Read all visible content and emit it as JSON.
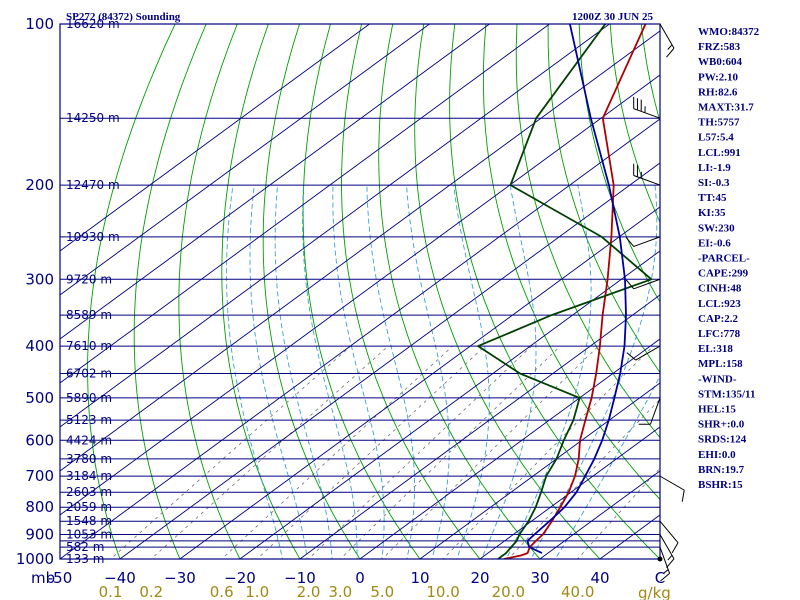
{
  "header": {
    "left": "SP272 (84372) Sounding",
    "right": "1200Z 30 JUN 25"
  },
  "colors": {
    "frame": "#000080",
    "isobar": "#000080",
    "isotherm": "#000080",
    "dry_adiabat": "#00a000",
    "moist_adiabat": "#3aa0d8",
    "mixing_ratio": "#707070",
    "temperature": "#b00000",
    "dewpoint": "#004000",
    "parcel": "#0000a0",
    "wind": "#000000",
    "mixing_label": "#a08a14"
  },
  "indices": [
    "WMO:84372",
    "FRZ:583",
    "WB0:604",
    "PW:2.10",
    "RH:82.6",
    "MAXT:31.7",
    "TH:5757",
    "L57:5.4",
    "LCL:991",
    "LI:-1.9",
    "SI:-0.3",
    "TT:45",
    "KI:35",
    "SW:230",
    "EI:-0.6",
    "-PARCEL-",
    "CAPE:299",
    "CINH:48",
    "LCL:923",
    "CAP:2.2",
    "LFC:778",
    "EL:318",
    "MPL:158",
    "-WIND-",
    "STM:135/11",
    "HEL:15",
    "SHR+:0.0",
    "SRDS:124",
    "EHI:0.0",
    "BRN:19.7",
    "BSHR:15"
  ],
  "chart_data": {
    "type": "line",
    "title": "SP272 (84372) Sounding",
    "subtitle": "1200Z 30 JUN 25",
    "xlabel": "",
    "ylabel": "mb",
    "x_unit_label": "C",
    "mixing_unit_label": "g/kg",
    "ylim": [
      1000,
      100
    ],
    "xlim": [
      -50,
      50
    ],
    "log_pressure": true,
    "skew": true,
    "pressure_ticks": [
      100,
      200,
      300,
      400,
      500,
      600,
      700,
      800,
      900,
      1000
    ],
    "temperature_ticks": [
      -50,
      -40,
      -30,
      -20,
      -10,
      0,
      10,
      20,
      30,
      40
    ],
    "temperature_tick_labels": [
      "-50",
      "−40",
      "−30",
      "−20",
      "−10",
      "0",
      "10",
      "20",
      "30",
      "40"
    ],
    "isobars": [
      100,
      150,
      200,
      250,
      300,
      350,
      400,
      450,
      500,
      550,
      600,
      650,
      700,
      750,
      800,
      850,
      900,
      925,
      950,
      1000
    ],
    "height_labels": [
      {
        "p": 100,
        "label": "16620 m"
      },
      {
        "p": 150,
        "label": "14250 m"
      },
      {
        "p": 200,
        "label": "12470 m"
      },
      {
        "p": 250,
        "label": "10930 m"
      },
      {
        "p": 300,
        "label": "9720 m"
      },
      {
        "p": 350,
        "label": "8589 m"
      },
      {
        "p": 400,
        "label": "7610 m"
      },
      {
        "p": 450,
        "label": "6702 m"
      },
      {
        "p": 500,
        "label": "5890 m"
      },
      {
        "p": 550,
        "label": "5123 m"
      },
      {
        "p": 600,
        "label": "4424 m"
      },
      {
        "p": 650,
        "label": "3780 m"
      },
      {
        "p": 700,
        "label": "3184 m"
      },
      {
        "p": 750,
        "label": "2603 m"
      },
      {
        "p": 800,
        "label": "2059 m"
      },
      {
        "p": 850,
        "label": "1548 m"
      },
      {
        "p": 900,
        "label": "1053 m"
      },
      {
        "p": 950,
        "label": "582 m"
      },
      {
        "p": 1000,
        "label": "133 m"
      }
    ],
    "mixing_ratio_labels": [
      "0.1",
      "0.2",
      "0.6",
      "1.0",
      "2.0",
      "3.0",
      "5.0",
      "10.0",
      "20.0",
      "40.0"
    ],
    "mixing_ratio_values": [
      0.1,
      0.2,
      0.6,
      1.0,
      2.0,
      3.0,
      5.0,
      10.0,
      20.0,
      40.0
    ],
    "series": [
      {
        "name": "Temperature",
        "points": [
          [
            1000,
            24.0
          ],
          [
            985,
            26.0
          ],
          [
            975,
            26.6
          ],
          [
            950,
            25.6
          ],
          [
            925,
            25.2
          ],
          [
            900,
            24.9
          ],
          [
            850,
            23.4
          ],
          [
            800,
            21.6
          ],
          [
            750,
            19.6
          ],
          [
            700,
            17.0
          ],
          [
            650,
            13.7
          ],
          [
            600,
            9.7
          ],
          [
            550,
            6.0
          ],
          [
            500,
            2.0
          ],
          [
            450,
            -2.8
          ],
          [
            400,
            -8.4
          ],
          [
            350,
            -15.0
          ],
          [
            300,
            -22.3
          ],
          [
            250,
            -31.3
          ],
          [
            200,
            -42.7
          ],
          [
            150,
            -59.7
          ],
          [
            100,
            -74.0
          ]
        ]
      },
      {
        "name": "Dewpoint",
        "points": [
          [
            1000,
            23.0
          ],
          [
            975,
            23.0
          ],
          [
            950,
            22.5
          ],
          [
            925,
            22.0
          ],
          [
            900,
            21.0
          ],
          [
            850,
            19.5
          ],
          [
            800,
            17.5
          ],
          [
            750,
            15.0
          ],
          [
            700,
            12.2
          ],
          [
            650,
            10.0
          ],
          [
            600,
            7.0
          ],
          [
            550,
            4.0
          ],
          [
            500,
            0.0
          ],
          [
            450,
            -15.5
          ],
          [
            400,
            -28.7
          ],
          [
            350,
            -23.5
          ],
          [
            300,
            -15.0
          ],
          [
            250,
            -32.9
          ],
          [
            200,
            -59.9
          ],
          [
            150,
            -70.8
          ],
          [
            100,
            -80.7
          ]
        ]
      },
      {
        "name": "Parcel",
        "points": [
          [
            975,
            29.0
          ],
          [
            950,
            25.5
          ],
          [
            925,
            23.8
          ],
          [
            900,
            23.5
          ],
          [
            850,
            23.0
          ],
          [
            800,
            22.3
          ],
          [
            750,
            20.9
          ],
          [
            700,
            18.7
          ],
          [
            650,
            16.3
          ],
          [
            600,
            13.4
          ],
          [
            550,
            9.9
          ],
          [
            500,
            5.8
          ],
          [
            450,
            1.2
          ],
          [
            400,
            -4.3
          ],
          [
            350,
            -11.1
          ],
          [
            300,
            -19.4
          ],
          [
            250,
            -29.9
          ],
          [
            200,
            -43.5
          ],
          [
            150,
            -61.7
          ],
          [
            100,
            -86.6
          ]
        ]
      }
    ],
    "wind_barbs": [
      {
        "p": 100,
        "dir": 150,
        "spd": 15
      },
      {
        "p": 150,
        "dir": 290,
        "spd": 35
      },
      {
        "p": 200,
        "dir": 290,
        "spd": 25
      },
      {
        "p": 250,
        "dir": 250,
        "spd": 10
      },
      {
        "p": 300,
        "dir": 250,
        "spd": 10
      },
      {
        "p": 400,
        "dir": 240,
        "spd": 10
      },
      {
        "p": 500,
        "dir": 200,
        "spd": 10
      },
      {
        "p": 700,
        "dir": 120,
        "spd": 10
      },
      {
        "p": 850,
        "dir": 140,
        "spd": 10
      },
      {
        "p": 900,
        "dir": 150,
        "spd": 15
      },
      {
        "p": 950,
        "dir": 160,
        "spd": 15
      },
      {
        "p": 1000,
        "dir": 0,
        "spd": 0
      }
    ]
  }
}
